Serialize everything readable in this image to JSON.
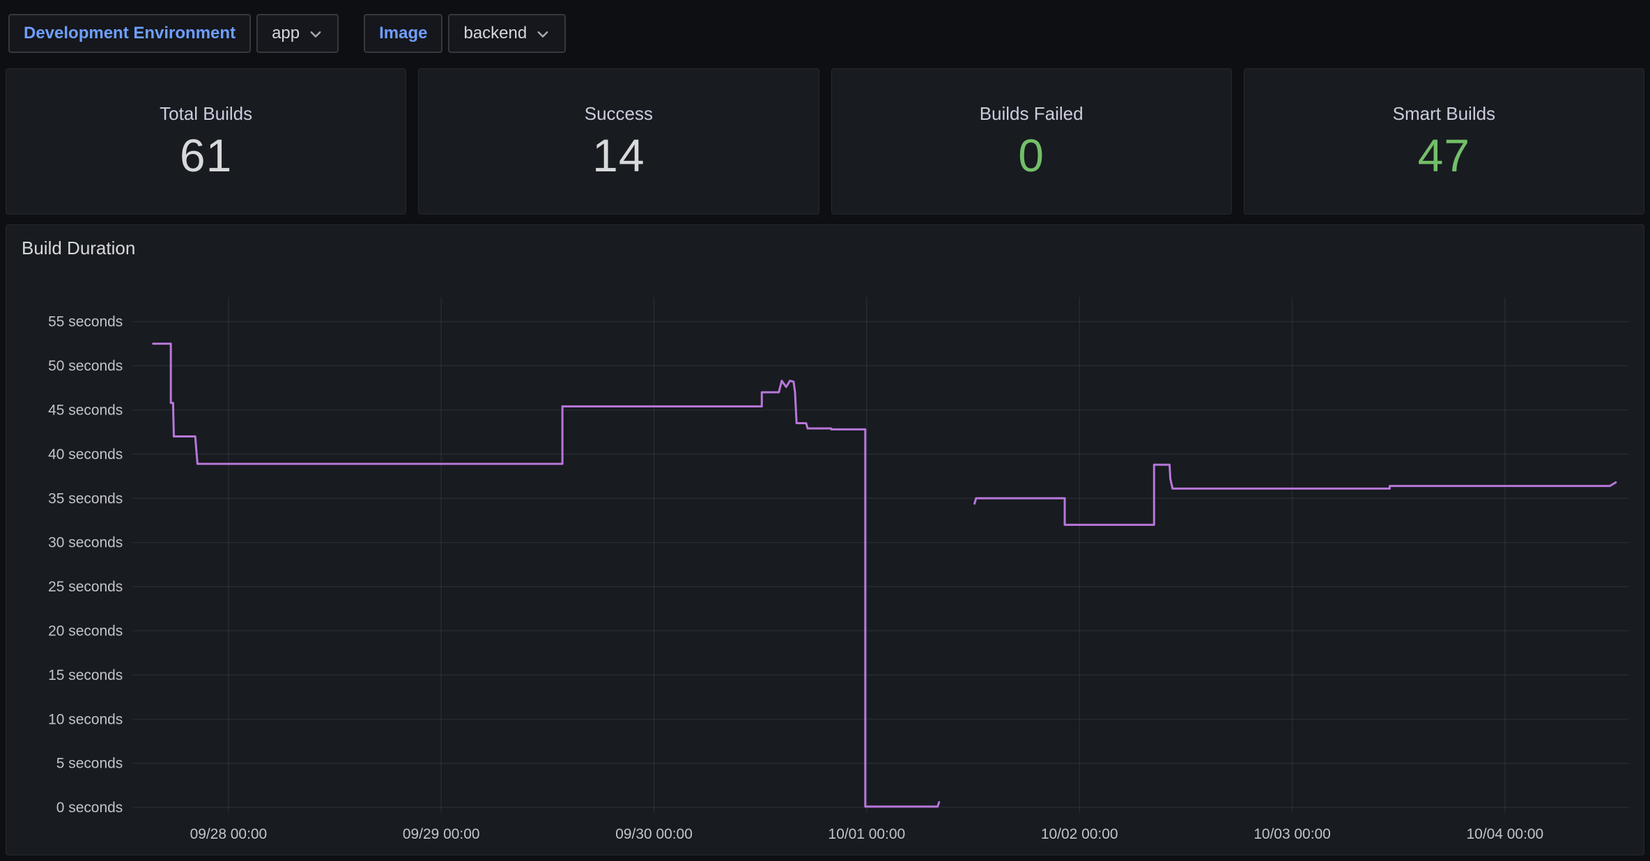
{
  "colors": {
    "page_background": "#0e0f13",
    "panel_background": "#181b20",
    "link_blue": "#6e9fff",
    "stat_green": "#73BF69",
    "stat_light": "#D8D9DA",
    "series_purple": "#B877D9"
  },
  "toolbar": {
    "variables": [
      {
        "label": "Development Environment",
        "value": "app"
      },
      {
        "label": "Image",
        "value": "backend"
      }
    ]
  },
  "stats": [
    {
      "title": "Total Builds",
      "value": "61",
      "color": "#D8D9DA"
    },
    {
      "title": "Success",
      "value": "14",
      "color": "#D8D9DA"
    },
    {
      "title": "Builds Failed",
      "value": "0",
      "color": "#73BF69"
    },
    {
      "title": "Smart Builds",
      "value": "47",
      "color": "#73BF69"
    }
  ],
  "chart_data": {
    "type": "line",
    "title": "Build Duration",
    "grid": true,
    "legend": false,
    "x_axis": {
      "tick_labels": [
        "09/28 00:00",
        "09/29 00:00",
        "09/30 00:00",
        "10/01 00:00",
        "10/02 00:00",
        "10/03 00:00",
        "10/04 00:00"
      ],
      "range": [
        "09/27 12:30",
        "10/04 14:00"
      ]
    },
    "y_axis": {
      "tick_values": [
        0,
        5,
        10,
        15,
        20,
        25,
        30,
        35,
        40,
        45,
        50,
        55
      ],
      "unit_suffix": " seconds",
      "range": [
        0,
        57.5
      ]
    },
    "series": [
      {
        "name": "build duration",
        "color": "#B877D9",
        "points": [
          [
            "09/27 15:30",
            52.5
          ],
          [
            "09/27 17:30",
            52.5
          ],
          [
            "09/27 17:30",
            45.8
          ],
          [
            "09/27 17:45",
            45.8
          ],
          [
            "09/27 17:50",
            42.0
          ],
          [
            "09/27 20:15",
            42.0
          ],
          [
            "09/27 20:30",
            38.9
          ],
          [
            "09/29 13:40",
            38.9
          ],
          [
            "09/29 13:40",
            45.4
          ],
          [
            "09/30 12:10",
            45.4
          ],
          [
            "09/30 12:10",
            47.0
          ],
          [
            "09/30 14:05",
            47.0
          ],
          [
            "09/30 14:25",
            48.3
          ],
          [
            "09/30 14:55",
            47.6
          ],
          [
            "09/30 15:20",
            48.3
          ],
          [
            "09/30 15:45",
            48.2
          ],
          [
            "09/30 15:55",
            47.0
          ],
          [
            "09/30 16:05",
            43.5
          ],
          [
            "09/30 17:10",
            43.5
          ],
          [
            "09/30 17:20",
            42.9
          ],
          [
            "09/30 20:00",
            42.9
          ],
          [
            "09/30 20:00",
            42.8
          ],
          [
            "09/30 23:50",
            42.8
          ],
          [
            "09/30 23:50",
            0.1
          ],
          [
            "10/01 08:00",
            0.1
          ],
          [
            "10/01 08:10",
            0.6
          ],
          null,
          [
            "10/01 12:10",
            34.4
          ],
          [
            "10/01 12:20",
            35.0
          ],
          [
            "10/01 22:20",
            35.0
          ],
          [
            "10/01 22:20",
            32.0
          ],
          [
            "10/02 08:25",
            32.0
          ],
          [
            "10/02 08:25",
            38.8
          ],
          [
            "10/02 10:10",
            38.8
          ],
          [
            "10/02 10:15",
            37.2
          ],
          [
            "10/02 10:30",
            36.1
          ],
          [
            "10/03 11:00",
            36.1
          ],
          [
            "10/03 11:00",
            36.4
          ],
          [
            "10/04 11:50",
            36.4
          ],
          [
            "10/04 12:30",
            36.8
          ]
        ]
      }
    ]
  }
}
